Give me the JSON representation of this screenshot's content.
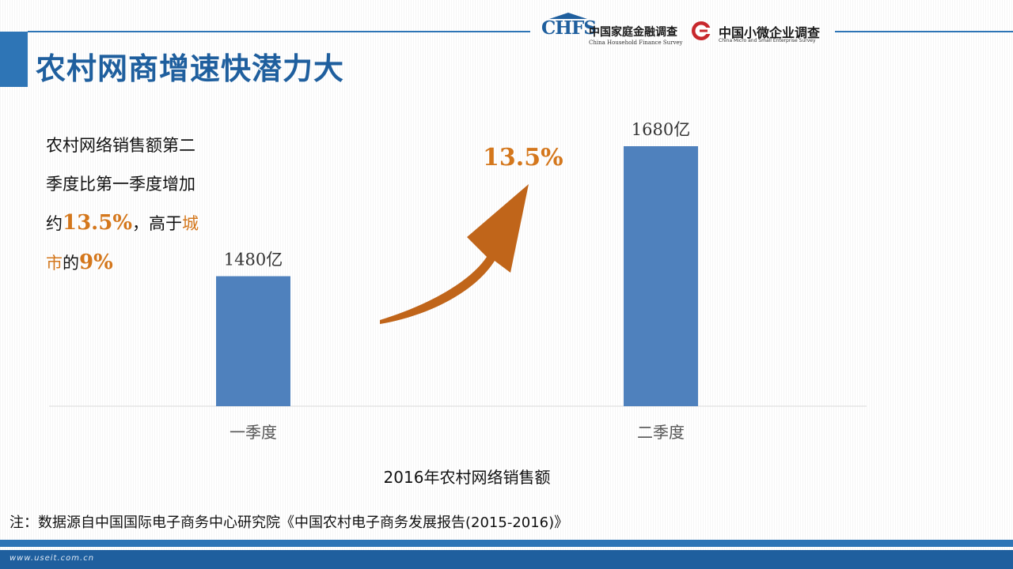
{
  "page": {
    "title": "农村网商增速快潜力大",
    "logos": {
      "chfs_mark": "CHFS",
      "chfs_cn": "中国家庭金融调查",
      "chfs_en": "China Household Finance Survey",
      "micro_cn": "中国小微企业调查",
      "micro_en": "China Micro and Small Enterprise Survey"
    },
    "description": {
      "line1": "农村网络销售额第二",
      "line2": "季度比第一季度增加",
      "line3_a": "约",
      "line3_num": "13.5%",
      "line3_b": "，高于",
      "line3_c": "城",
      "line4_a": "市",
      "line4_b": "的",
      "line4_num": "9%"
    },
    "source_note": "注：数据源自中国国际电子商务中心研究院《中国农村电子商务发展报告(2015-2016)》",
    "footer_url": "www.useit.com.cn",
    "colors": {
      "bar": "#4f81bd",
      "accent": "#d4771c",
      "arrow": "#c0651a",
      "brand_blue": "#2e75b6"
    }
  },
  "chart_data": {
    "type": "bar",
    "title": "2016年农村网络销售额",
    "categories": [
      "一季度",
      "二季度"
    ],
    "values": [
      1480,
      1680
    ],
    "data_labels": [
      "1480亿",
      "1680亿"
    ],
    "ylim": [
      0,
      1800
    ],
    "grid": false,
    "annotation": "13.5%"
  }
}
